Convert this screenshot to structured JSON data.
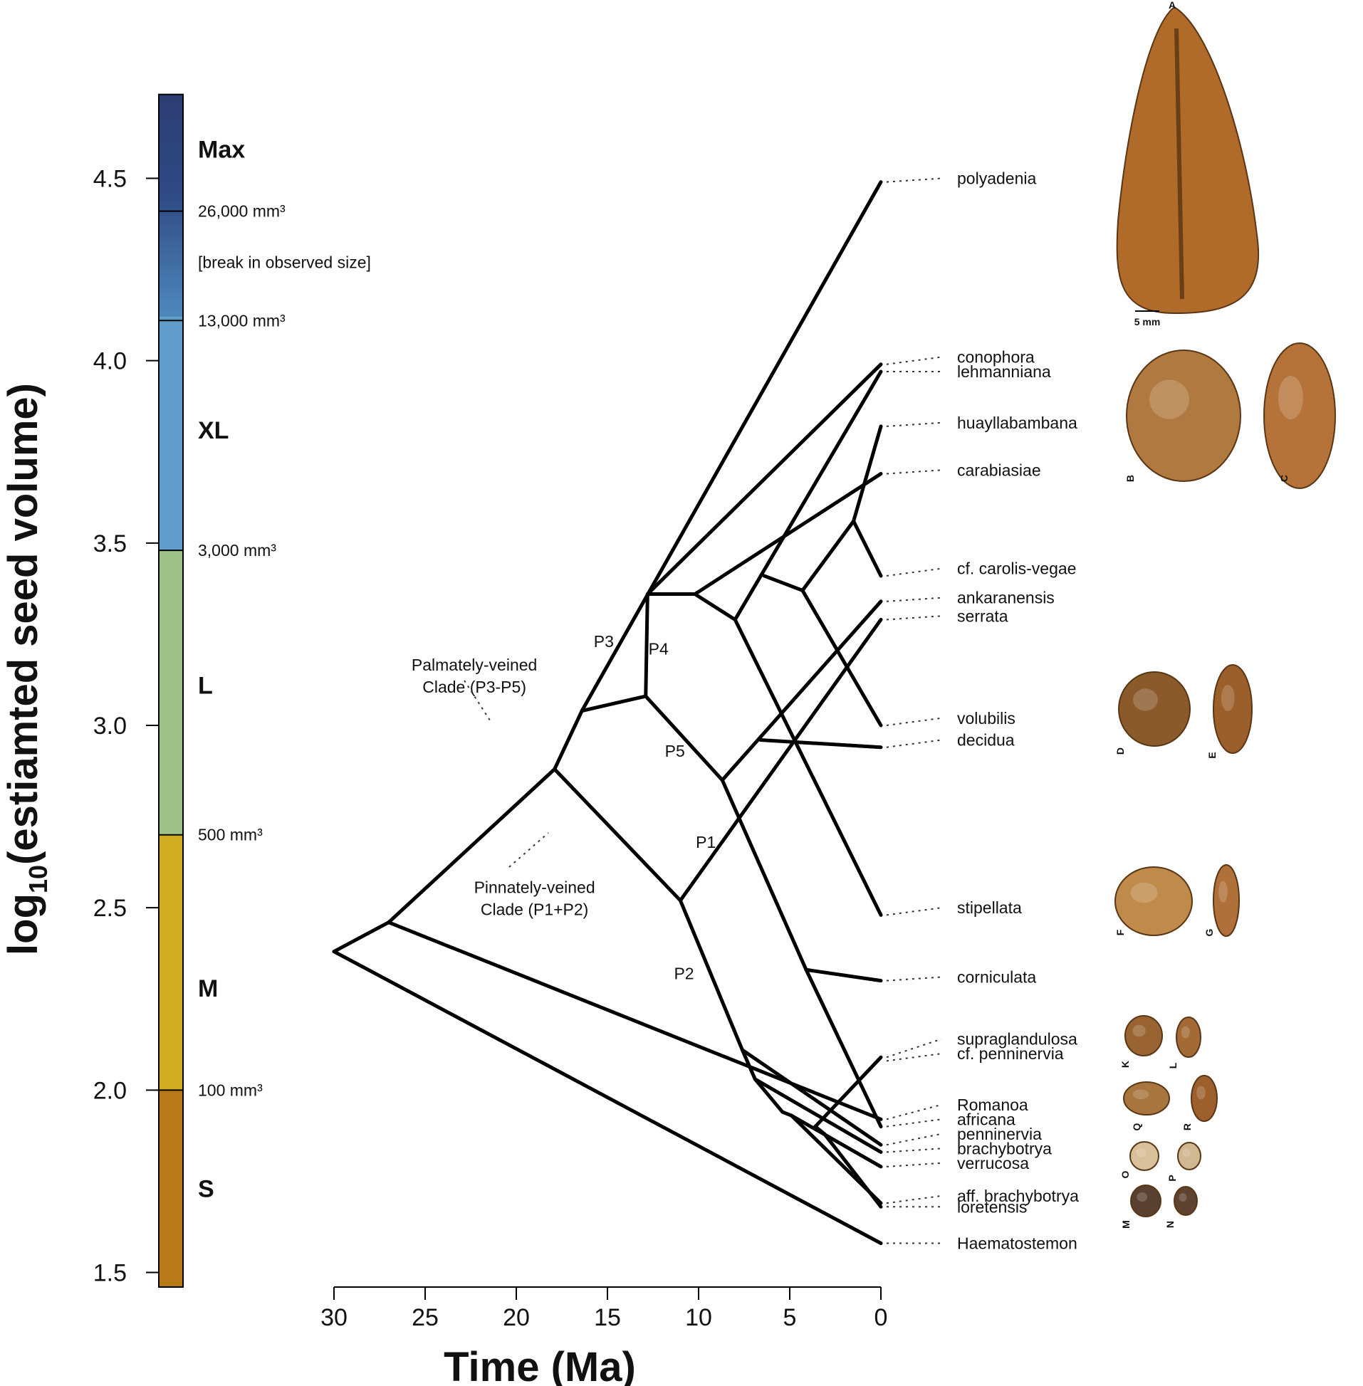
{
  "chart_data": {
    "type": "phylogeny",
    "xlabel": "Time (Ma)",
    "ylabel": "log10(estiamted seed volume)",
    "xlim": [
      30,
      0
    ],
    "ylim": [
      1.5,
      4.7
    ],
    "x_ticks": [
      "30",
      "25",
      "20",
      "15",
      "10",
      "5",
      "0"
    ],
    "y_ticks": [
      "4.5",
      "4.0",
      "3.5",
      "3.0",
      "2.5",
      "2.0",
      "1.5"
    ],
    "y_tick_values": [
      4.5,
      4.0,
      3.5,
      3.0,
      2.5,
      2.0,
      1.5
    ],
    "x_tick_values": [
      30,
      25,
      20,
      15,
      10,
      5,
      0
    ],
    "size_bands": [
      {
        "name": "S",
        "from": 1.46,
        "to": 2.0,
        "color": "#b87916"
      },
      {
        "name": "M",
        "from": 2.0,
        "to": 2.7,
        "color": "#d2ac1f"
      },
      {
        "name": "L",
        "from": 2.7,
        "to": 3.48,
        "color": "#9fc187"
      },
      {
        "name": "XL",
        "from": 3.48,
        "to": 4.12,
        "color": "#5e9cc9"
      },
      {
        "name": "Max",
        "from": 4.12,
        "to": 4.73,
        "color": "#2d3d73"
      }
    ],
    "size_class_labels": [
      {
        "text": "Max",
        "y": 4.58
      },
      {
        "text": "XL",
        "y": 3.81
      },
      {
        "text": "L",
        "y": 3.11
      },
      {
        "text": "M",
        "y": 2.28
      },
      {
        "text": "S",
        "y": 1.73
      }
    ],
    "volume_thresholds": [
      {
        "text": "26,000 mm³",
        "y": 4.41
      },
      {
        "text": "[break in observed size]",
        "y": 4.27
      },
      {
        "text": "13,000 mm³",
        "y": 4.11
      },
      {
        "text": "3,000 mm³",
        "y": 3.48
      },
      {
        "text": "500 mm³",
        "y": 2.7
      },
      {
        "text": "100 mm³",
        "y": 2.0
      }
    ],
    "nodes": {
      "root": [
        30.0,
        2.38
      ],
      "n1": [
        27.0,
        2.46
      ],
      "n2": [
        17.9,
        2.88
      ],
      "n3": [
        16.4,
        3.04
      ],
      "n4": [
        12.8,
        3.36
      ],
      "n5": [
        10.2,
        3.36
      ],
      "n6": [
        8.0,
        3.29
      ],
      "n7": [
        6.4,
        3.41
      ],
      "n8": [
        4.3,
        3.37
      ],
      "n9": [
        1.5,
        3.56
      ],
      "n10": [
        12.9,
        3.08
      ],
      "n11": [
        8.7,
        2.85
      ],
      "n12": [
        6.6,
        2.96
      ],
      "n13": [
        11.0,
        2.52
      ],
      "n14": [
        4.1,
        2.33
      ],
      "n15": [
        7.6,
        2.11
      ],
      "n16": [
        6.9,
        2.03
      ],
      "n17": [
        5.4,
        1.94
      ],
      "n18": [
        4.9,
        1.93
      ],
      "n19": [
        3.6,
        1.9
      ],
      "n20": [
        3.1,
        1.88
      ]
    },
    "tips": [
      {
        "name": "polyadenia",
        "y": 4.49,
        "label_y": 4.5
      },
      {
        "name": "conophora",
        "y": 3.99,
        "label_y": 4.01
      },
      {
        "name": "lehmanniana",
        "y": 3.97,
        "label_y": 3.97
      },
      {
        "name": "huayllabambana",
        "y": 3.82,
        "label_y": 3.83
      },
      {
        "name": "carabiasiae",
        "y": 3.69,
        "label_y": 3.7
      },
      {
        "name": "cf. carolis-vegae",
        "y": 3.41,
        "label_y": 3.43
      },
      {
        "name": "ankaranensis",
        "y": 3.34,
        "label_y": 3.35
      },
      {
        "name": "serrata",
        "y": 3.29,
        "label_y": 3.3
      },
      {
        "name": "volubilis",
        "y": 3.0,
        "label_y": 3.02
      },
      {
        "name": "decidua",
        "y": 2.94,
        "label_y": 2.96
      },
      {
        "name": "stipellata",
        "y": 2.48,
        "label_y": 2.5
      },
      {
        "name": "corniculata",
        "y": 2.3,
        "label_y": 2.31
      },
      {
        "name": "supraglandulosa",
        "y": 2.09,
        "label_y": 2.14
      },
      {
        "name": "cf. penninervia",
        "y": 2.08,
        "label_y": 2.1
      },
      {
        "name": "Romanoa",
        "y": 1.92,
        "label_y": 1.96
      },
      {
        "name": "africana",
        "y": 1.9,
        "label_y": 1.92
      },
      {
        "name": "penninervia",
        "y": 1.85,
        "label_y": 1.88
      },
      {
        "name": "brachybotrya",
        "y": 1.83,
        "label_y": 1.84
      },
      {
        "name": "verrucosa",
        "y": 1.79,
        "label_y": 1.8
      },
      {
        "name": "aff. brachybotrya",
        "y": 1.69,
        "label_y": 1.71
      },
      {
        "name": "loretensis",
        "y": 1.68,
        "label_y": 1.68
      },
      {
        "name": "Haematostemon",
        "y": 1.58,
        "label_y": 1.58
      }
    ],
    "edges": [
      [
        "root",
        "n1"
      ],
      [
        "root",
        "tip:Haematostemon"
      ],
      [
        "n1",
        "n2"
      ],
      [
        "n1",
        "tip:Romanoa"
      ],
      [
        "n2",
        "n3"
      ],
      [
        "n2",
        "n13"
      ],
      [
        "n3",
        "tip:polyadenia"
      ],
      [
        "n3",
        "n10"
      ],
      [
        "n10",
        "n4"
      ],
      [
        "n10",
        "n11"
      ],
      [
        "n4",
        "tip:conophora"
      ],
      [
        "n4",
        "n5"
      ],
      [
        "n5",
        "tip:carabiasiae"
      ],
      [
        "n5",
        "n6"
      ],
      [
        "n6",
        "tip:lehmanniana"
      ],
      [
        "n6",
        "tip:stipellata"
      ],
      [
        "n7",
        "n8"
      ],
      [
        "n8",
        "n9"
      ],
      [
        "n8",
        "tip:volubilis"
      ],
      [
        "n9",
        "tip:huayllabambana"
      ],
      [
        "n9",
        "tip:cf. carolis-vegae"
      ],
      [
        "n11",
        "tip:ankaranensis"
      ],
      [
        "n11",
        "n14"
      ],
      [
        "n14",
        "tip:corniculata"
      ],
      [
        "n14",
        "tip:africana"
      ],
      [
        "n13",
        "tip:serrata"
      ],
      [
        "n13",
        "n15"
      ],
      [
        "n12",
        "tip:decidua"
      ],
      [
        "n15",
        "n16"
      ],
      [
        "n15",
        "tip:penninervia"
      ],
      [
        "n16",
        "n17"
      ],
      [
        "n16",
        "tip:brachybotrya"
      ],
      [
        "n17",
        "n18"
      ],
      [
        "n18",
        "tip:verrucosa"
      ],
      [
        "n18",
        "tip:aff. brachybotrya"
      ],
      [
        "n19",
        "tip:supraglandulosa"
      ],
      [
        "n19",
        "n20"
      ],
      [
        "n20",
        "tip:loretensis"
      ]
    ],
    "clade_labels": [
      {
        "text": "P3",
        "x": 15.2,
        "y": 3.23
      },
      {
        "text": "P4",
        "x": 12.2,
        "y": 3.21
      },
      {
        "text": "P5",
        "x": 11.3,
        "y": 2.93
      },
      {
        "text": "P1",
        "x": 9.6,
        "y": 2.68
      },
      {
        "text": "P2",
        "x": 10.8,
        "y": 2.32
      }
    ],
    "clade_annotations": [
      {
        "lines": [
          "Palmately-veined",
          "Clade (P3-P5)"
        ],
        "x": 22.3,
        "y": 3.15
      },
      {
        "lines": [
          "Pinnately-veined",
          "Clade (P1+P2)"
        ],
        "x": 19.0,
        "y": 2.54
      }
    ],
    "seed_images": [
      {
        "letter": "A",
        "color": "#b06a2a",
        "scale_label": "5 mm"
      },
      {
        "letter": "B",
        "color": "#b0793f"
      },
      {
        "letter": "C",
        "color": "#b5733a"
      },
      {
        "letter": "D",
        "color": "#8a5a2a"
      },
      {
        "letter": "E",
        "color": "#9a5f2a"
      },
      {
        "letter": "F",
        "color": "#c08a4a"
      },
      {
        "letter": "G",
        "color": "#b0703a"
      },
      {
        "letter": "K",
        "color": "#9a6432"
      },
      {
        "letter": "L",
        "color": "#a36a35"
      },
      {
        "letter": "Q",
        "color": "#a8753e"
      },
      {
        "letter": "R",
        "color": "#9d5f2c"
      },
      {
        "letter": "O",
        "color": "#d8c09a"
      },
      {
        "letter": "P",
        "color": "#d0b890"
      },
      {
        "letter": "M",
        "color": "#5a4030"
      },
      {
        "letter": "N",
        "color": "#5e4330"
      }
    ]
  }
}
